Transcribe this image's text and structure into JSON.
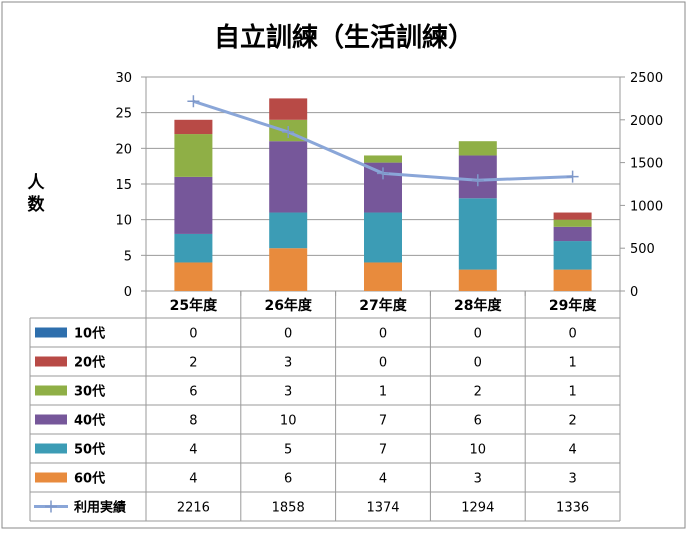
{
  "chart_data": {
    "type": "bar",
    "stacked": true,
    "title": "自立訓練（生活訓練）",
    "ylabel": "人数",
    "categories": [
      "25年度",
      "26年度",
      "27年度",
      "28年度",
      "29年度"
    ],
    "ylim": [
      0,
      30
    ],
    "yticks": [
      "0",
      "5",
      "10",
      "15",
      "20",
      "25",
      "30"
    ],
    "y2lim": [
      0,
      2500
    ],
    "y2ticks": [
      "0",
      "500",
      "1000",
      "1500",
      "2000",
      "2500"
    ],
    "grid": true,
    "legend": "data-table",
    "series": [
      {
        "name": "10代",
        "color": "#2e6fad",
        "values": [
          0,
          0,
          0,
          0,
          0
        ]
      },
      {
        "name": "20代",
        "color": "#b84a46",
        "values": [
          2,
          3,
          0,
          0,
          1
        ]
      },
      {
        "name": "30代",
        "color": "#8faf46",
        "values": [
          6,
          3,
          1,
          2,
          1
        ]
      },
      {
        "name": "40代",
        "color": "#76579a",
        "values": [
          8,
          10,
          7,
          6,
          2
        ]
      },
      {
        "name": "50代",
        "color": "#3c9cb5",
        "values": [
          4,
          5,
          7,
          10,
          4
        ]
      },
      {
        "name": "60代",
        "color": "#e88b3d",
        "values": [
          4,
          6,
          4,
          3,
          3
        ]
      }
    ],
    "line_series": {
      "name": "利用実績",
      "color": "#8aa6d8",
      "axis": "right",
      "values": [
        2216,
        1858,
        1374,
        1294,
        1336
      ]
    }
  }
}
